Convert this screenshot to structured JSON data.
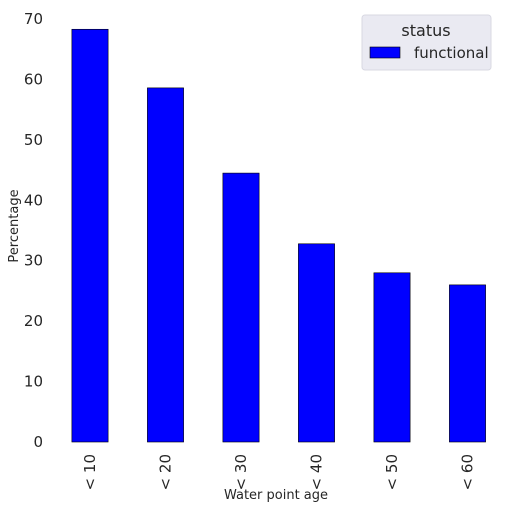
{
  "chart_data": {
    "type": "bar",
    "categories": [
      "< 10",
      "< 20",
      "< 30",
      "< 40",
      "< 50",
      "< 60"
    ],
    "series": [
      {
        "name": "functional",
        "values": [
          68.3,
          58.6,
          44.5,
          32.8,
          28.0,
          26.0
        ],
        "color": "#0000ff"
      }
    ],
    "title": "",
    "xlabel": "Water point age",
    "ylabel": "Percentage",
    "ylim": [
      0,
      70
    ],
    "yticks": [
      0,
      10,
      20,
      30,
      40,
      50,
      60,
      70
    ],
    "grid": false,
    "legend": {
      "title": "status",
      "placement": "top-right"
    },
    "colors": {
      "bar": "#0000ff",
      "bar_edge": "#000000",
      "legend_bg": "#eaeaf2"
    }
  }
}
